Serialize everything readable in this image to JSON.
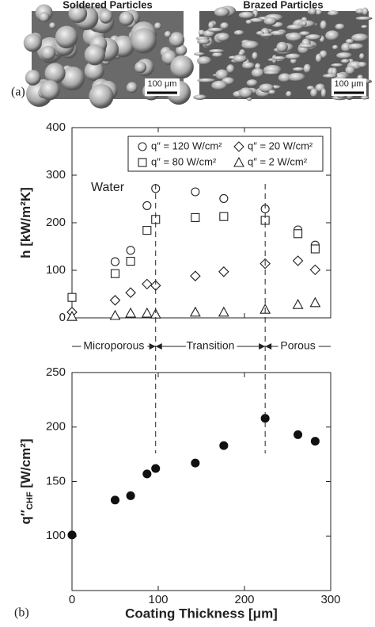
{
  "panel_a": {
    "label": "(a)",
    "images": [
      {
        "title": "Soldered Particles",
        "scale_label": "100 μm"
      },
      {
        "title": "Brazed Particles",
        "scale_label": "100 μm"
      }
    ]
  },
  "panel_b_label": "(b)",
  "chart_data": [
    {
      "type": "scatter",
      "ylabel": "h [kW/m²K]",
      "annotation": "Water",
      "x": [
        0,
        50,
        68,
        87,
        97,
        143,
        176,
        224,
        262,
        282
      ],
      "series": [
        {
          "name": "q″ = 120 W/cm²",
          "marker": "circle",
          "color": "#222222",
          "fill": "#ffffff",
          "values": [
            null,
            118,
            142,
            236,
            272,
            265,
            251,
            229,
            185,
            153
          ]
        },
        {
          "name": "q″ = 80 W/cm²",
          "marker": "square",
          "color": "#222222",
          "fill": "#ffffff",
          "values": [
            43,
            93,
            119,
            184,
            207,
            211,
            213,
            205,
            177,
            145
          ]
        },
        {
          "name": "q″ = 20 W/cm²",
          "marker": "diamond",
          "color": "#222222",
          "fill": "#ffffff",
          "values": [
            12,
            37,
            53,
            71,
            68,
            88,
            97,
            114,
            120,
            101
          ]
        },
        {
          "name": "q″ = 2 W/cm²",
          "marker": "triangle",
          "color": "#222222",
          "fill": "#ffffff",
          "values": [
            3,
            5,
            10,
            10,
            8,
            12,
            12,
            18,
            28,
            32
          ]
        }
      ],
      "xlim": [
        0,
        300
      ],
      "xticks": [
        0,
        100,
        200,
        300
      ],
      "show_xtick_labels": false,
      "ylim": [
        0,
        400
      ],
      "yticks": [
        0,
        100,
        200,
        300,
        400
      ],
      "regions": {
        "labels": [
          "Microporous",
          "Transition",
          "Porous"
        ],
        "boundaries": [
          97,
          224
        ]
      }
    },
    {
      "type": "scatter",
      "ylabel": "q″",
      "ylabel_sub": "CHF",
      "ylabel_unit": " [W/cm²]",
      "xlabel": "Coating Thickness [μm]",
      "x": [
        0,
        50,
        68,
        87,
        97,
        143,
        176,
        224,
        262,
        282
      ],
      "series": [
        {
          "marker": "circle",
          "color": "#111111",
          "fill": "#111111",
          "values": [
            101,
            133,
            137,
            157,
            162,
            167,
            183,
            208,
            193,
            187
          ]
        }
      ],
      "xlim": [
        0,
        300
      ],
      "xticks": [
        0,
        100,
        200,
        300
      ],
      "show_xtick_labels": true,
      "ylim": [
        50,
        250
      ],
      "yticks": [
        100,
        150,
        200,
        250
      ]
    }
  ]
}
